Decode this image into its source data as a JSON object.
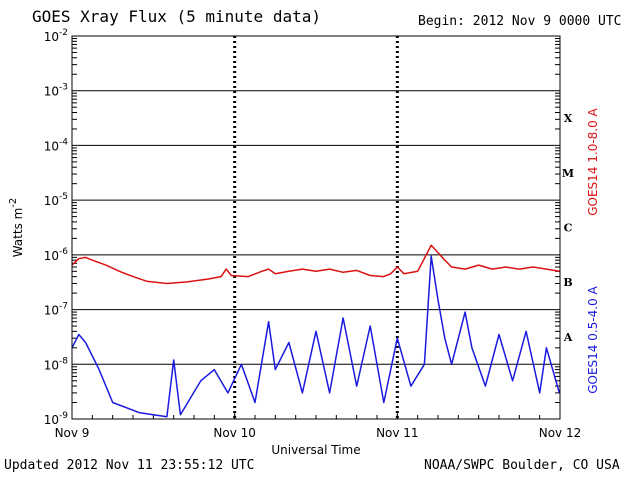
{
  "header": {
    "title": "GOES Xray Flux (5 minute data)",
    "begin_label": "Begin:  2012 Nov 9 0000 UTC"
  },
  "footer": {
    "updated": "Updated 2012 Nov 11 23:55:12 UTC",
    "credit": "NOAA/SWPC Boulder, CO USA"
  },
  "colors": {
    "long_channel": "#dd1111",
    "short_channel": "#1a1adf",
    "axes": "#000000",
    "background": "#ffffff"
  },
  "chart_data": {
    "type": "line",
    "title": "GOES Xray Flux (5 minute data)",
    "xlabel": "Universal Time",
    "ylabel_base": "Watts m",
    "ylabel_exp": "-2",
    "yscale": "log",
    "ylim": [
      1e-09,
      0.01
    ],
    "xlim": [
      "2012-11-09",
      "2012-11-12"
    ],
    "y_ticks": [
      {
        "value": 0.01,
        "base": "10",
        "exp": "-2"
      },
      {
        "value": 0.001,
        "base": "10",
        "exp": "-3"
      },
      {
        "value": 0.0001,
        "base": "10",
        "exp": "-4"
      },
      {
        "value": 1e-05,
        "base": "10",
        "exp": "-5"
      },
      {
        "value": 1e-06,
        "base": "10",
        "exp": "-6"
      },
      {
        "value": 1e-07,
        "base": "10",
        "exp": "-7"
      },
      {
        "value": 1e-08,
        "base": "10",
        "exp": "-8"
      },
      {
        "value": 1e-09,
        "base": "10",
        "exp": "-9"
      }
    ],
    "x_ticks": [
      {
        "t": "2012-11-09",
        "label": "Nov 9"
      },
      {
        "t": "2012-11-10",
        "label": "Nov 10"
      },
      {
        "t": "2012-11-11",
        "label": "Nov 11"
      },
      {
        "t": "2012-11-12",
        "label": "Nov 12"
      }
    ],
    "flare_classes": [
      {
        "label": "X",
        "low": 0.0001,
        "high": 0.001
      },
      {
        "label": "M",
        "low": 1e-05,
        "high": 0.0001
      },
      {
        "label": "C",
        "low": 1e-06,
        "high": 1e-05
      },
      {
        "label": "B",
        "low": 1e-07,
        "high": 1e-06
      },
      {
        "label": "A",
        "low": 1e-08,
        "high": 1e-07
      }
    ],
    "grid": {
      "horizontal_decades": true,
      "vertical_days": "dashed"
    },
    "series": [
      {
        "name": "GOES14 1.0-8.0 A",
        "color": "#dd1111",
        "points": [
          [
            "2012-11-09 00:00",
            6.5e-07
          ],
          [
            "2012-11-09 01:00",
            8.5e-07
          ],
          [
            "2012-11-09 02:00",
            9e-07
          ],
          [
            "2012-11-09 03:00",
            8e-07
          ],
          [
            "2012-11-09 05:00",
            6.5e-07
          ],
          [
            "2012-11-09 07:00",
            5e-07
          ],
          [
            "2012-11-09 09:00",
            4e-07
          ],
          [
            "2012-11-09 11:00",
            3.3e-07
          ],
          [
            "2012-11-09 14:00",
            3e-07
          ],
          [
            "2012-11-09 17:00",
            3.2e-07
          ],
          [
            "2012-11-09 20:00",
            3.6e-07
          ],
          [
            "2012-11-09 22:00",
            4e-07
          ],
          [
            "2012-11-09 22:45",
            5.5e-07
          ],
          [
            "2012-11-09 23:30",
            4.2e-07
          ],
          [
            "2012-11-10 02:00",
            4e-07
          ],
          [
            "2012-11-10 04:00",
            5e-07
          ],
          [
            "2012-11-10 05:00",
            5.5e-07
          ],
          [
            "2012-11-10 06:00",
            4.5e-07
          ],
          [
            "2012-11-10 08:00",
            5e-07
          ],
          [
            "2012-11-10 10:00",
            5.5e-07
          ],
          [
            "2012-11-10 12:00",
            5e-07
          ],
          [
            "2012-11-10 14:00",
            5.5e-07
          ],
          [
            "2012-11-10 16:00",
            4.8e-07
          ],
          [
            "2012-11-10 18:00",
            5.2e-07
          ],
          [
            "2012-11-10 20:00",
            4.2e-07
          ],
          [
            "2012-11-10 22:00",
            4e-07
          ],
          [
            "2012-11-10 23:00",
            4.5e-07
          ],
          [
            "2012-11-11 00:00",
            6e-07
          ],
          [
            "2012-11-11 01:00",
            4.5e-07
          ],
          [
            "2012-11-11 03:00",
            5e-07
          ],
          [
            "2012-11-11 05:00",
            1.5e-06
          ],
          [
            "2012-11-11 06:00",
            1.1e-06
          ],
          [
            "2012-11-11 07:00",
            8e-07
          ],
          [
            "2012-11-11 08:00",
            6e-07
          ],
          [
            "2012-11-11 10:00",
            5.5e-07
          ],
          [
            "2012-11-11 12:00",
            6.5e-07
          ],
          [
            "2012-11-11 14:00",
            5.5e-07
          ],
          [
            "2012-11-11 16:00",
            6e-07
          ],
          [
            "2012-11-11 18:00",
            5.5e-07
          ],
          [
            "2012-11-11 20:00",
            6e-07
          ],
          [
            "2012-11-11 22:00",
            5.5e-07
          ],
          [
            "2012-11-11 23:55",
            5e-07
          ]
        ]
      },
      {
        "name": "GOES14 0.5-4.0 A",
        "color": "#1a1adf",
        "points": [
          [
            "2012-11-09 00:00",
            2e-08
          ],
          [
            "2012-11-09 01:00",
            3.5e-08
          ],
          [
            "2012-11-09 02:00",
            2.5e-08
          ],
          [
            "2012-11-09 04:00",
            8e-09
          ],
          [
            "2012-11-09 06:00",
            2e-09
          ],
          [
            "2012-11-09 10:00",
            1.3e-09
          ],
          [
            "2012-11-09 14:00",
            1.1e-09
          ],
          [
            "2012-11-09 15:00",
            1.2e-08
          ],
          [
            "2012-11-09 16:00",
            1.2e-09
          ],
          [
            "2012-11-09 19:00",
            5e-09
          ],
          [
            "2012-11-09 21:00",
            8e-09
          ],
          [
            "2012-11-09 23:00",
            3e-09
          ],
          [
            "2012-11-10 01:00",
            1e-08
          ],
          [
            "2012-11-10 03:00",
            2e-09
          ],
          [
            "2012-11-10 05:00",
            6e-08
          ],
          [
            "2012-11-10 06:00",
            8e-09
          ],
          [
            "2012-11-10 08:00",
            2.5e-08
          ],
          [
            "2012-11-10 10:00",
            3e-09
          ],
          [
            "2012-11-10 12:00",
            4e-08
          ],
          [
            "2012-11-10 14:00",
            3e-09
          ],
          [
            "2012-11-10 16:00",
            7e-08
          ],
          [
            "2012-11-10 18:00",
            4e-09
          ],
          [
            "2012-11-10 20:00",
            5e-08
          ],
          [
            "2012-11-10 22:00",
            2e-09
          ],
          [
            "2012-11-11 00:00",
            3e-08
          ],
          [
            "2012-11-11 02:00",
            4e-09
          ],
          [
            "2012-11-11 04:00",
            1e-08
          ],
          [
            "2012-11-11 05:00",
            9.5e-07
          ],
          [
            "2012-11-11 06:00",
            1.5e-07
          ],
          [
            "2012-11-11 07:00",
            3e-08
          ],
          [
            "2012-11-11 08:00",
            1e-08
          ],
          [
            "2012-11-11 10:00",
            9e-08
          ],
          [
            "2012-11-11 11:00",
            2e-08
          ],
          [
            "2012-11-11 13:00",
            4e-09
          ],
          [
            "2012-11-11 15:00",
            3.5e-08
          ],
          [
            "2012-11-11 17:00",
            5e-09
          ],
          [
            "2012-11-11 19:00",
            4e-08
          ],
          [
            "2012-11-11 21:00",
            3e-09
          ],
          [
            "2012-11-11 22:00",
            2e-08
          ],
          [
            "2012-11-11 23:55",
            3e-09
          ]
        ]
      }
    ]
  }
}
